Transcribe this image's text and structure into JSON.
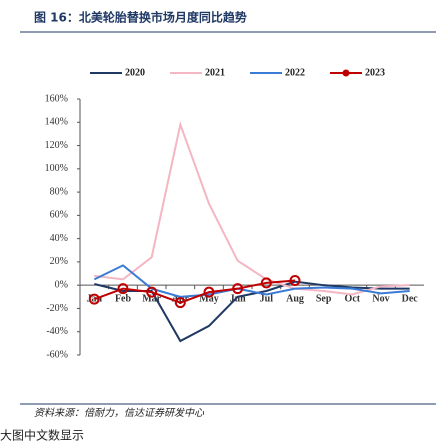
{
  "title": "图 16：北美轮胎替换市场月度同比趋势",
  "source": "资料来源：倍耐力，信达证券研发中心",
  "footer": "大图中文数显示",
  "chart_data": {
    "type": "line",
    "categories": [
      "Jan",
      "Feb",
      "Mar",
      "Apr",
      "May",
      "Jun",
      "Jul",
      "Aug",
      "Sep",
      "Oct",
      "Nov",
      "Dec"
    ],
    "series": [
      {
        "name": "2020",
        "color": "#1f3864",
        "values": [
          1,
          -5,
          -5,
          -48,
          -35,
          -10,
          -5,
          3,
          0,
          -2,
          -3,
          -3
        ]
      },
      {
        "name": "2021",
        "color": "#f4b6c2",
        "values": [
          8,
          5,
          24,
          138,
          70,
          21,
          5,
          -3,
          -5,
          -8,
          -1,
          0
        ]
      },
      {
        "name": "2022",
        "color": "#3a7bd5",
        "values": [
          5,
          17,
          -3,
          -10,
          -8,
          -3,
          -8,
          -3,
          -2,
          -3,
          -7,
          -5
        ]
      },
      {
        "name": "2023",
        "color": "#c00000",
        "markers": true,
        "values": [
          -12,
          -3,
          -6,
          -15,
          -6,
          -3,
          2,
          4,
          null,
          null,
          null,
          null
        ]
      }
    ],
    "ylim": [
      -60,
      160
    ],
    "yticks": [
      {
        "value": -60,
        "label": "-60%"
      },
      {
        "value": -40,
        "label": "-40%"
      },
      {
        "value": -20,
        "label": "-20%"
      },
      {
        "value": 0,
        "label": "0%"
      },
      {
        "value": 20,
        "label": "20%"
      },
      {
        "value": 40,
        "label": "40%"
      },
      {
        "value": 60,
        "label": "60%"
      },
      {
        "value": 80,
        "label": "80%"
      },
      {
        "value": 100,
        "label": "100%"
      },
      {
        "value": 120,
        "label": "120%"
      },
      {
        "value": 140,
        "label": "140%"
      },
      {
        "value": 160,
        "label": "160%"
      }
    ],
    "legend": "top"
  }
}
